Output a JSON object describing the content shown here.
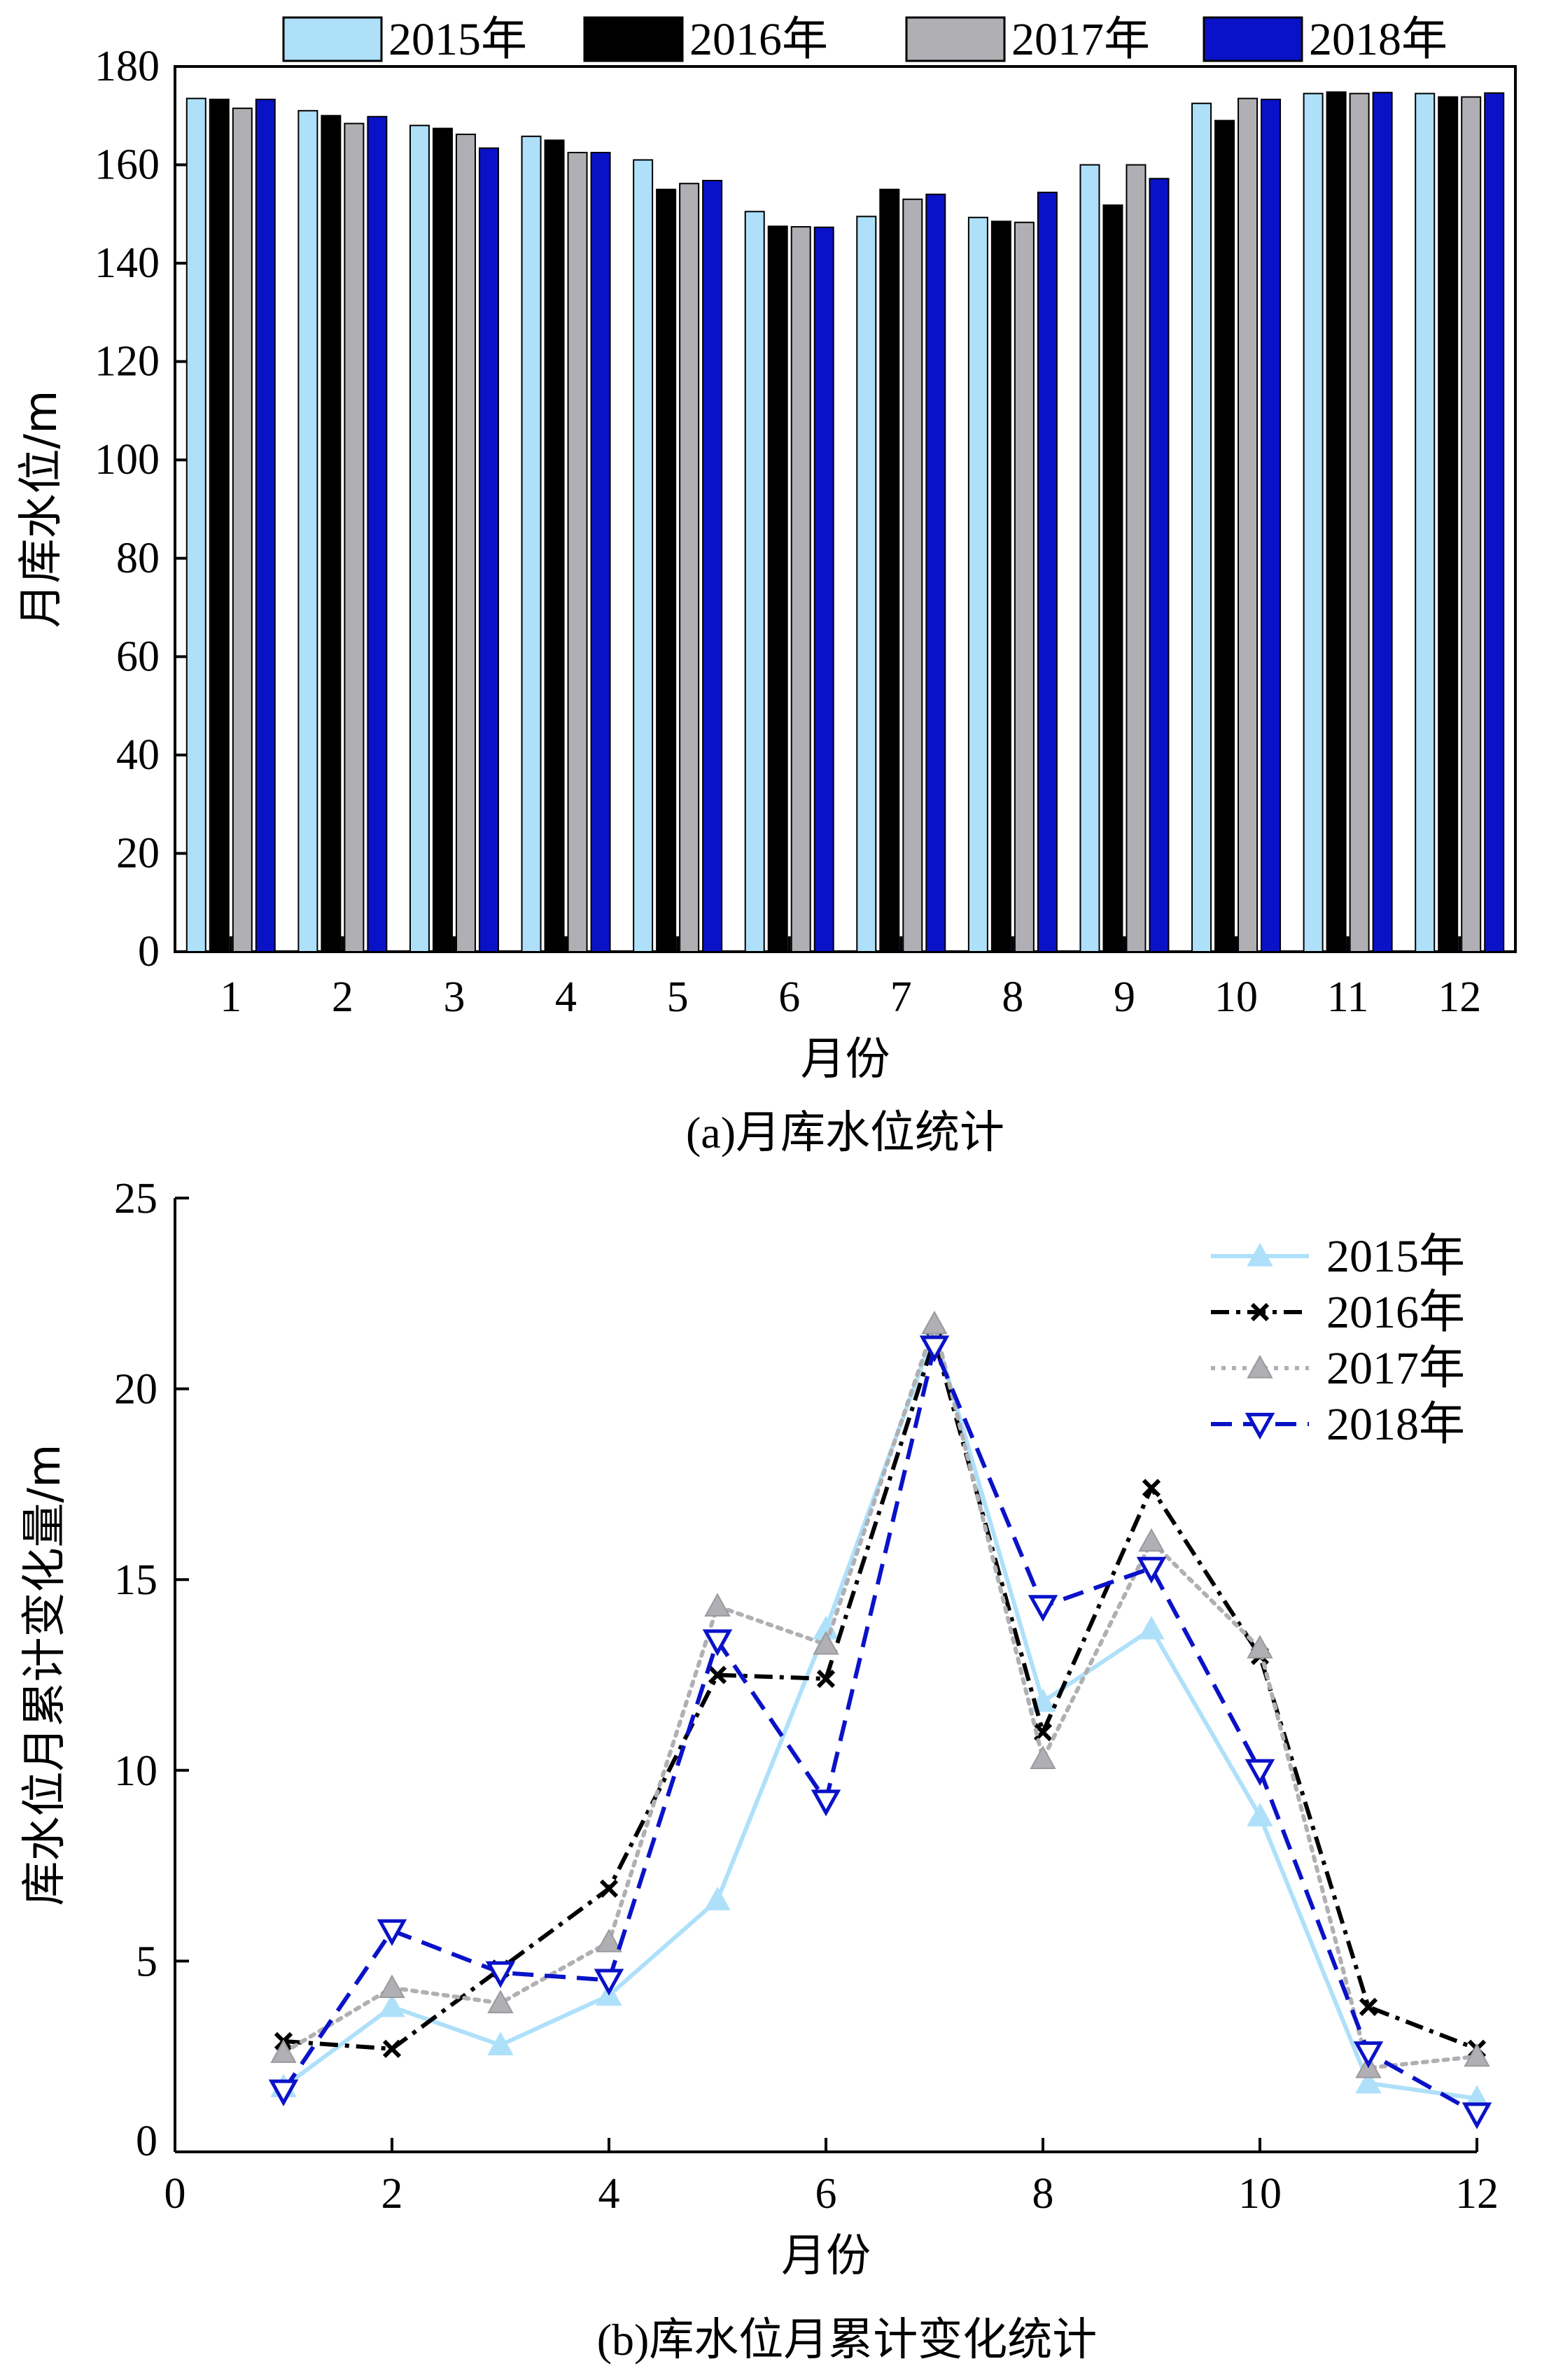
{
  "chart_data": [
    {
      "type": "bar",
      "caption": "(a)月库水位统计",
      "xlabel": "月份",
      "ylabel": "月库水位/m",
      "ylim": [
        0,
        180
      ],
      "yticks": [
        0,
        20,
        40,
        60,
        80,
        100,
        120,
        140,
        160,
        180
      ],
      "categories": [
        "1",
        "2",
        "3",
        "4",
        "5",
        "6",
        "7",
        "8",
        "9",
        "10",
        "11",
        "12"
      ],
      "legend_position": "top",
      "series": [
        {
          "name": "2015年",
          "color": "#aee0fa",
          "values": [
            173.5,
            171,
            168,
            165.8,
            161,
            150.5,
            149.5,
            149.3,
            160,
            172.5,
            174.5,
            174.5
          ]
        },
        {
          "name": "2016年",
          "color": "#000000",
          "values": [
            173.3,
            170,
            167.4,
            165,
            155,
            147.5,
            155,
            148.5,
            151.8,
            169,
            174.8,
            173.8
          ]
        },
        {
          "name": "2017年",
          "color": "#b0b0b4",
          "values": [
            171.5,
            168.4,
            166.2,
            162.5,
            156.2,
            147.4,
            153,
            148.3,
            160,
            173.5,
            174.5,
            173.8
          ]
        },
        {
          "name": "2018年",
          "color": "#0a12c8",
          "values": [
            173.3,
            169.8,
            163.4,
            162.5,
            156.8,
            147.3,
            154,
            154.4,
            157.2,
            173.3,
            174.7,
            174.6
          ]
        }
      ]
    },
    {
      "type": "line",
      "caption": "(b)库水位月累计变化统计",
      "xlabel": "月份",
      "ylabel": "库水位月累计变化量/m",
      "xlim": [
        0,
        12
      ],
      "ylim": [
        0,
        25
      ],
      "xticks": [
        0,
        2,
        4,
        6,
        8,
        10,
        12
      ],
      "yticks": [
        0,
        5,
        10,
        15,
        20,
        25
      ],
      "x": [
        1,
        2,
        3,
        4,
        5,
        6,
        7,
        8,
        9,
        10,
        11,
        12
      ],
      "legend_position": "top-right",
      "series": [
        {
          "name": "2015年",
          "color": "#aee0fa",
          "dash": "solid",
          "marker": "triangle-up",
          "values": [
            1.7,
            3.8,
            2.8,
            4.1,
            6.6,
            13.7,
            21.5,
            11.8,
            13.7,
            8.8,
            1.8,
            1.4
          ]
        },
        {
          "name": "2016年",
          "color": "#000000",
          "dash": "dashdot",
          "marker": "x",
          "values": [
            2.9,
            2.7,
            4.8,
            6.9,
            12.5,
            12.4,
            21.3,
            11.0,
            17.4,
            13.0,
            3.8,
            2.7
          ]
        },
        {
          "name": "2017年",
          "color": "#b0b0b4",
          "dash": "dotted",
          "marker": "triangle-up",
          "values": [
            2.6,
            4.3,
            3.9,
            5.5,
            14.3,
            13.3,
            21.7,
            10.3,
            16.0,
            13.2,
            2.2,
            2.5
          ]
        },
        {
          "name": "2018年",
          "color": "#0a12c8",
          "dash": "dashed",
          "marker": "triangle-down",
          "values": [
            1.6,
            5.8,
            4.7,
            4.5,
            13.4,
            9.2,
            21.1,
            14.3,
            15.3,
            10.0,
            2.6,
            1.0
          ]
        }
      ]
    }
  ]
}
